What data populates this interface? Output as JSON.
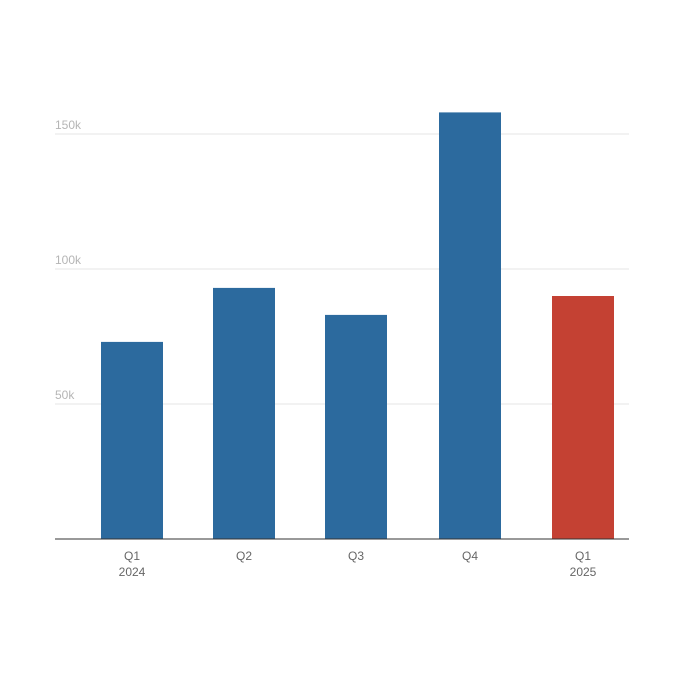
{
  "chart_data": {
    "type": "bar",
    "categories": [
      {
        "label": "Q1",
        "year": "2024"
      },
      {
        "label": "Q2",
        "year": ""
      },
      {
        "label": "Q3",
        "year": ""
      },
      {
        "label": "Q4",
        "year": ""
      },
      {
        "label": "Q1",
        "year": "2025"
      }
    ],
    "values": [
      73000,
      93000,
      83000,
      158000,
      90000
    ],
    "bar_colors": [
      "#2c6a9e",
      "#2c6a9e",
      "#2c6a9e",
      "#2c6a9e",
      "#c44133"
    ],
    "y_ticks": [
      {
        "value": 50000,
        "label": "50k"
      },
      {
        "value": 100000,
        "label": "100k"
      },
      {
        "value": 150000,
        "label": "150k"
      }
    ],
    "ylim": [
      0,
      175000
    ],
    "title": "",
    "xlabel": "",
    "ylabel": "",
    "grid": true,
    "legend": "none"
  },
  "colors": {
    "primary_bar": "#2c6a9e",
    "highlight_bar": "#c44133",
    "gridline": "#e6e6e6",
    "baseline": "#333333"
  }
}
